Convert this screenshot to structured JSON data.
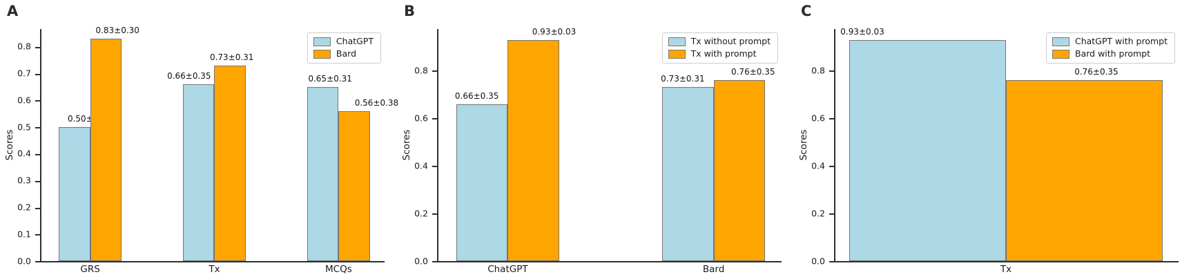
{
  "figure": {
    "background": "#ffffff",
    "bar_edge_color": "#757575",
    "axis_color": "#2e2e2e",
    "colors": {
      "chatgpt_blue": "#ADD8E6",
      "bard_orange": "#FFA500"
    }
  },
  "chart_data": [
    {
      "panel": "A",
      "type": "bar",
      "ylabel": "Scores",
      "categories": [
        "GRS",
        "Tx",
        "MCQs"
      ],
      "series": [
        {
          "name": "ChatGPT",
          "color": "#ADD8E6",
          "values": [
            0.5,
            0.66,
            0.65
          ],
          "labels": [
            "0.50±0.36",
            "0.66±0.35",
            "0.65±0.31"
          ]
        },
        {
          "name": "Bard",
          "color": "#FFA500",
          "values": [
            0.83,
            0.73,
            0.56
          ],
          "labels": [
            "0.83±0.30",
            "0.73±0.31",
            "0.56±0.38"
          ]
        }
      ],
      "ylim": [
        0,
        0.867
      ],
      "yticks": [
        "0.0",
        "0.1",
        "0.2",
        "0.3",
        "0.4",
        "0.5",
        "0.6",
        "0.7",
        "0.8"
      ],
      "grid": false,
      "legend_position": "upper right",
      "layout": {
        "group_centers_pct": [
          14.2,
          50.4,
          86.6
        ],
        "bar_width_pct": 9.15,
        "label_dx_pct": [
          [
            4.4,
            -2.8,
            2.1
          ],
          [
            3.4,
            0.5,
            6.5
          ]
        ]
      }
    },
    {
      "panel": "B",
      "type": "bar",
      "ylabel": "Scores",
      "categories": [
        "ChatGPT",
        "Bard"
      ],
      "series": [
        {
          "name": "Tx without prompt",
          "color": "#ADD8E6",
          "values": [
            0.66,
            0.73
          ],
          "labels": [
            "0.66±0.35",
            "0.73±0.31"
          ]
        },
        {
          "name": "Tx with prompt",
          "color": "#FFA500",
          "values": [
            0.93,
            0.76
          ],
          "labels": [
            "0.93±0.03",
            "0.76±0.35"
          ]
        }
      ],
      "ylim": [
        0,
        0.975
      ],
      "yticks": [
        "0.0",
        "0.2",
        "0.4",
        "0.6",
        "0.8"
      ],
      "grid": false,
      "legend_position": "upper right",
      "layout": {
        "group_centers_pct": [
          20.2,
          80.2
        ],
        "bar_width_pct": 15.0,
        "label_dx_pct": [
          [
            -1.5,
            -1.5
          ],
          [
            6.0,
            4.0
          ]
        ]
      }
    },
    {
      "panel": "C",
      "type": "bar",
      "ylabel": "Scores",
      "categories": [
        "Tx"
      ],
      "series": [
        {
          "name": "ChatGPT with prompt",
          "color": "#ADD8E6",
          "values": [
            0.93
          ],
          "labels": [
            "0.93±0.03"
          ]
        },
        {
          "name": "Bard with prompt",
          "color": "#FFA500",
          "values": [
            0.76
          ],
          "labels": [
            "0.76±0.35"
          ]
        }
      ],
      "ylim": [
        0,
        0.975
      ],
      "yticks": [
        "0.0",
        "0.2",
        "0.4",
        "0.6",
        "0.8"
      ],
      "grid": false,
      "legend_position": "upper right",
      "layout": {
        "group_centers_pct": [
          49.7
        ],
        "bar_width_pct": 45.7,
        "label_dx_pct": [
          [
            -19.0
          ],
          [
            3.5
          ]
        ]
      }
    }
  ]
}
